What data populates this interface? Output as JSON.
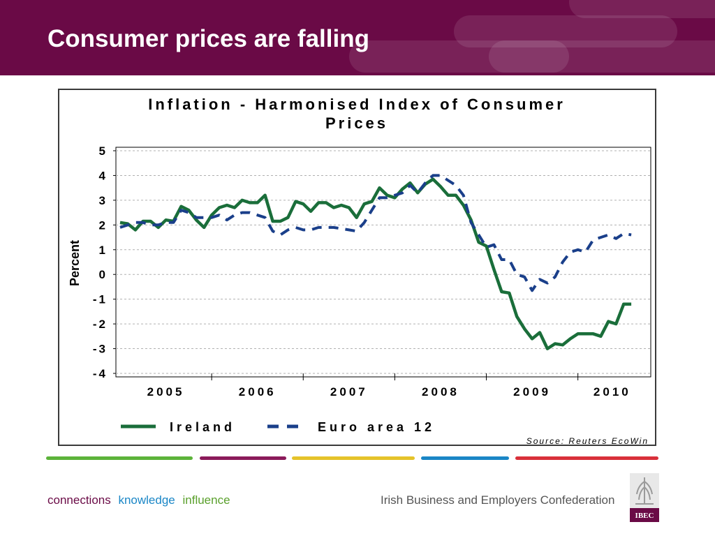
{
  "slide": {
    "title": "Consumer prices are falling",
    "header_color": "#6a0a46"
  },
  "footer": {
    "tagline": [
      {
        "text": "connections",
        "color": "#6a0a46"
      },
      {
        "text": "knowledge",
        "color": "#1a86c6"
      },
      {
        "text": "influence",
        "color": "#5aa02c"
      }
    ],
    "organization": "Irish Business and Employers Confederation",
    "logo_text": "IBEC",
    "stripe_colors": [
      "#5cb33a",
      "#8b1a5a",
      "#e5c32a",
      "#1a86c6",
      "#d9303a"
    ]
  },
  "chart_data": {
    "type": "line",
    "title": "Inflation - Harmonised Index of Consumer Prices",
    "ylabel": "Percent",
    "ylim": [
      -4,
      5
    ],
    "yticks": [
      "5",
      "4",
      "3",
      "2",
      "1",
      "0",
      "-1",
      "-2",
      "-3",
      "-4"
    ],
    "ytick_values": [
      5,
      4,
      3,
      2,
      1,
      0,
      -1,
      -2,
      -3,
      -4
    ],
    "xlim": [
      2005.0,
      2010.75
    ],
    "year_labels": [
      "2005",
      "2006",
      "2007",
      "2008",
      "2009",
      "2010"
    ],
    "grid": "horizontal dashed",
    "legend_position": "bottom",
    "source": "Source: Reuters EcoWin",
    "series": [
      {
        "name": "Ireland",
        "color": "#1a6e3a",
        "style": "solid",
        "x": [
          2005.0,
          2005.083,
          2005.167,
          2005.25,
          2005.333,
          2005.417,
          2005.5,
          2005.583,
          2005.667,
          2005.75,
          2005.833,
          2005.917,
          2006.0,
          2006.083,
          2006.167,
          2006.25,
          2006.333,
          2006.417,
          2006.5,
          2006.583,
          2006.667,
          2006.75,
          2006.833,
          2006.917,
          2007.0,
          2007.083,
          2007.167,
          2007.25,
          2007.333,
          2007.417,
          2007.5,
          2007.583,
          2007.667,
          2007.75,
          2007.833,
          2007.917,
          2008.0,
          2008.083,
          2008.167,
          2008.25,
          2008.333,
          2008.417,
          2008.5,
          2008.583,
          2008.667,
          2008.75,
          2008.833,
          2008.917,
          2009.0,
          2009.083,
          2009.167,
          2009.25,
          2009.333,
          2009.417,
          2009.5,
          2009.583,
          2009.667,
          2009.75,
          2009.833,
          2009.917,
          2010.0,
          2010.083,
          2010.167,
          2010.25,
          2010.333,
          2010.417,
          2010.5,
          2010.583
        ],
        "values": [
          2.1,
          2.05,
          1.8,
          2.15,
          2.15,
          1.9,
          2.2,
          2.15,
          2.75,
          2.6,
          2.2,
          1.9,
          2.4,
          2.7,
          2.8,
          2.7,
          3.0,
          2.9,
          2.9,
          3.2,
          2.15,
          2.15,
          2.3,
          2.95,
          2.85,
          2.55,
          2.9,
          2.9,
          2.7,
          2.8,
          2.7,
          2.3,
          2.85,
          2.95,
          3.5,
          3.2,
          3.1,
          3.45,
          3.7,
          3.3,
          3.65,
          3.85,
          3.55,
          3.2,
          3.2,
          2.8,
          2.2,
          1.3,
          1.15,
          0.2,
          -0.7,
          -0.75,
          -1.7,
          -2.2,
          -2.6,
          -2.35,
          -3.0,
          -2.8,
          -2.85,
          -2.6,
          -2.4,
          -2.4,
          -2.4,
          -2.5,
          -1.9,
          -2.0,
          -1.2,
          -1.2
        ]
      },
      {
        "name": "Euro area 12",
        "color": "#1a3f8a",
        "style": "dashed",
        "x": [
          2005.0,
          2005.083,
          2005.167,
          2005.25,
          2005.333,
          2005.417,
          2005.5,
          2005.583,
          2005.667,
          2005.75,
          2005.833,
          2005.917,
          2006.0,
          2006.083,
          2006.167,
          2006.25,
          2006.333,
          2006.417,
          2006.5,
          2006.583,
          2006.667,
          2006.75,
          2006.833,
          2006.917,
          2007.0,
          2007.083,
          2007.167,
          2007.25,
          2007.333,
          2007.417,
          2007.5,
          2007.583,
          2007.667,
          2007.75,
          2007.833,
          2007.917,
          2008.0,
          2008.083,
          2008.167,
          2008.25,
          2008.333,
          2008.417,
          2008.5,
          2008.583,
          2008.667,
          2008.75,
          2008.833,
          2008.917,
          2009.0,
          2009.083,
          2009.167,
          2009.25,
          2009.333,
          2009.417,
          2009.5,
          2009.583,
          2009.667,
          2009.75,
          2009.833,
          2009.917,
          2010.0,
          2010.083,
          2010.167,
          2010.25,
          2010.333,
          2010.417,
          2010.5,
          2010.583
        ],
        "values": [
          1.9,
          2.0,
          2.1,
          2.1,
          2.0,
          2.0,
          2.1,
          2.1,
          2.6,
          2.5,
          2.3,
          2.3,
          2.3,
          2.4,
          2.2,
          2.4,
          2.5,
          2.5,
          2.4,
          2.3,
          1.75,
          1.6,
          1.8,
          1.9,
          1.8,
          1.8,
          1.9,
          1.9,
          1.9,
          1.85,
          1.8,
          1.75,
          2.1,
          2.6,
          3.1,
          3.1,
          3.2,
          3.3,
          3.6,
          3.3,
          3.7,
          4.0,
          4.0,
          3.8,
          3.6,
          3.2,
          2.1,
          1.6,
          1.1,
          1.2,
          0.6,
          0.6,
          0.0,
          -0.1,
          -0.65,
          -0.2,
          -0.35,
          -0.1,
          0.5,
          0.9,
          1.0,
          0.9,
          1.4,
          1.5,
          1.6,
          1.45,
          1.65,
          1.6
        ]
      }
    ]
  }
}
